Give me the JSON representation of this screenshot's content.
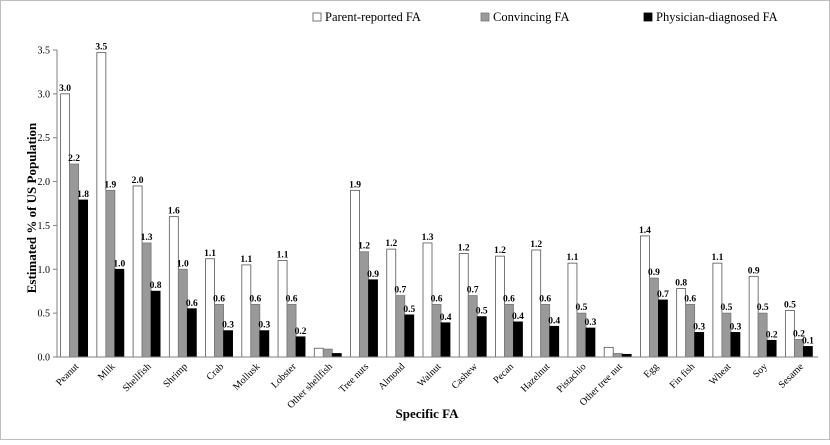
{
  "chart_data": {
    "type": "bar",
    "title": "",
    "xlabel": "Specific FA",
    "ylabel": "Estimated % of US Population",
    "ylim": [
      0,
      3.5
    ],
    "yticks": [
      "0.0",
      "0.5",
      "1.0",
      "1.5",
      "2.0",
      "2.5",
      "3.0",
      "3.5"
    ],
    "ytick_values": [
      0,
      0.5,
      1.0,
      1.5,
      2.0,
      2.5,
      3.0,
      3.5
    ],
    "grid": false,
    "legend_position": "top-right",
    "categories": [
      "Peanut",
      "Milk",
      "Shellfish",
      "Shrimp",
      "Crab",
      "Mollusk",
      "Lobster",
      "Other shellfish",
      "Tree nuts",
      "Almond",
      "Walnut",
      "Cashew",
      "Pecan",
      "Hazelnut",
      "Pistachio",
      "Other tree nut",
      "Egg",
      "Fin fish",
      "Wheat",
      "Soy",
      "Sesame"
    ],
    "series": [
      {
        "name": "Parent-reported FA",
        "color": "#ffffff",
        "stroke": "#555555",
        "values": [
          3.0,
          3.47,
          1.95,
          1.6,
          1.12,
          1.05,
          1.1,
          0.1,
          1.9,
          1.23,
          1.3,
          1.18,
          1.15,
          1.22,
          1.07,
          0.11,
          1.38,
          0.78,
          1.07,
          0.92,
          0.53
        ],
        "labels": [
          "3.0",
          "3.5",
          "2.0",
          "1.6",
          "1.1",
          "1.1",
          "1.1",
          "",
          "1.9",
          "1.2",
          "1.3",
          "1.2",
          "1.2",
          "1.2",
          "1.1",
          "",
          "1.4",
          "0.8",
          "1.1",
          "0.9",
          "0.5"
        ]
      },
      {
        "name": "Convincing FA",
        "color": "#999999",
        "stroke": "#777777",
        "values": [
          2.2,
          1.9,
          1.3,
          1.0,
          0.6,
          0.6,
          0.6,
          0.09,
          1.2,
          0.7,
          0.6,
          0.7,
          0.6,
          0.6,
          0.5,
          0.04,
          0.9,
          0.6,
          0.5,
          0.5,
          0.2
        ],
        "labels": [
          "2.2",
          "1.9",
          "1.3",
          "1.0",
          "0.6",
          "0.6",
          "0.6",
          "",
          "1.2",
          "0.7",
          "0.6",
          "0.7",
          "0.6",
          "0.6",
          "0.5",
          "",
          "0.9",
          "0.6",
          "0.5",
          "0.5",
          "0.2"
        ]
      },
      {
        "name": "Physician-diagnosed FA",
        "color": "#000000",
        "stroke": "#000000",
        "values": [
          1.79,
          1.0,
          0.75,
          0.55,
          0.3,
          0.3,
          0.23,
          0.04,
          0.88,
          0.48,
          0.39,
          0.46,
          0.4,
          0.35,
          0.33,
          0.03,
          0.65,
          0.28,
          0.28,
          0.19,
          0.12
        ],
        "labels": [
          "1.8",
          "1.0",
          "0.8",
          "0.6",
          "0.3",
          "0.3",
          "0.2",
          "",
          "0.9",
          "0.5",
          "0.4",
          "0.5",
          "0.4",
          "0.4",
          "0.3",
          "",
          "0.7",
          "0.3",
          "0.3",
          "0.2",
          "0.1"
        ]
      }
    ]
  }
}
